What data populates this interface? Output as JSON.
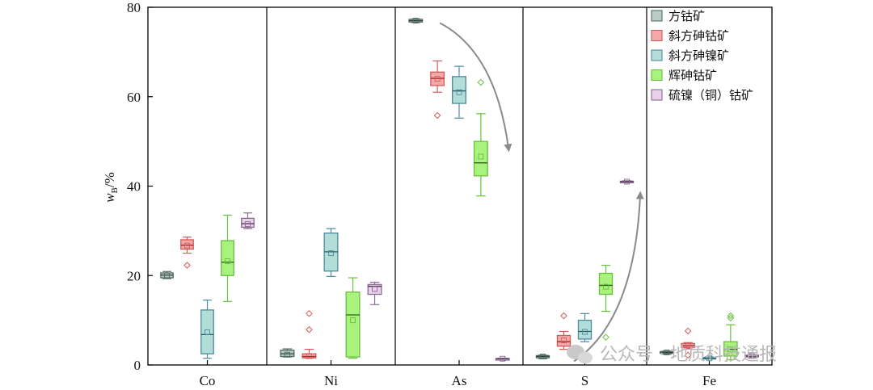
{
  "chart_data": {
    "type": "boxplot",
    "title": "",
    "ylabel_main": "w",
    "ylabel_sub": "B",
    "ylabel_unit": "/%",
    "ylim": [
      0,
      80
    ],
    "yticks": [
      0,
      20,
      40,
      60,
      80
    ],
    "groups": [
      "Co",
      "Ni",
      "As",
      "S",
      "Fe"
    ],
    "series": [
      {
        "name": "方钴矿",
        "face": "#b9cdc6",
        "edge": "#556b65",
        "median_color": "#2f3d39",
        "boxes": [
          {
            "group": "Co",
            "min": 19.3,
            "q1": 19.5,
            "median": 20.1,
            "q3": 20.6,
            "max": 20.9,
            "mean": 20.0,
            "outliers": []
          },
          {
            "group": "Ni",
            "min": 1.8,
            "q1": 1.9,
            "median": 2.5,
            "q3": 3.3,
            "max": 3.6,
            "mean": 2.3,
            "outliers": []
          },
          {
            "group": "As",
            "min": 76.6,
            "q1": 76.7,
            "median": 77.0,
            "q3": 77.3,
            "max": 77.4,
            "mean": 77.0,
            "outliers": []
          },
          {
            "group": "S",
            "min": 1.4,
            "q1": 1.6,
            "median": 1.9,
            "q3": 2.1,
            "max": 2.2,
            "mean": 1.9,
            "outliers": []
          },
          {
            "group": "Fe",
            "min": 2.4,
            "q1": 2.6,
            "median": 2.8,
            "q3": 3.0,
            "max": 3.1,
            "mean": 2.8,
            "outliers": []
          }
        ]
      },
      {
        "name": "斜方砷钴矿",
        "face": "#f2a9a9",
        "edge": "#d65a5a",
        "median_color": "#9c2a2a",
        "boxes": [
          {
            "group": "Co",
            "min": 25.0,
            "q1": 25.9,
            "median": 26.8,
            "q3": 28.0,
            "max": 28.6,
            "mean": 26.7,
            "outliers": [
              22.3
            ]
          },
          {
            "group": "Ni",
            "min": 1.5,
            "q1": 1.6,
            "median": 1.9,
            "q3": 2.5,
            "max": 3.5,
            "mean": 2.0,
            "outliers": [
              7.9,
              11.5
            ]
          },
          {
            "group": "As",
            "min": 61.0,
            "q1": 62.5,
            "median": 64.1,
            "q3": 65.5,
            "max": 68.0,
            "mean": 64.0,
            "outliers": [
              55.8
            ]
          },
          {
            "group": "S",
            "min": 3.5,
            "q1": 4.2,
            "median": 5.2,
            "q3": 6.6,
            "max": 7.5,
            "mean": 5.5,
            "outliers": [
              11.0
            ]
          },
          {
            "group": "Fe",
            "min": 3.6,
            "q1": 3.9,
            "median": 4.3,
            "q3": 4.8,
            "max": 5.0,
            "mean": 4.3,
            "outliers": [
              2.2,
              7.6
            ]
          }
        ]
      },
      {
        "name": "斜方砷镍矿",
        "face": "#b2ddd8",
        "edge": "#4c8c9c",
        "median_color": "#2d5a66",
        "boxes": [
          {
            "group": "Co",
            "min": 1.5,
            "q1": 2.5,
            "median": 6.8,
            "q3": 12.3,
            "max": 14.5,
            "mean": 7.3,
            "outliers": []
          },
          {
            "group": "Ni",
            "min": 19.8,
            "q1": 21.0,
            "median": 25.3,
            "q3": 29.5,
            "max": 30.5,
            "mean": 25.0,
            "outliers": []
          },
          {
            "group": "As",
            "min": 55.2,
            "q1": 58.5,
            "median": 61.3,
            "q3": 64.5,
            "max": 66.8,
            "mean": 61.0,
            "outliers": []
          },
          {
            "group": "S",
            "min": 5.2,
            "q1": 5.8,
            "median": 7.5,
            "q3": 10.0,
            "max": 11.5,
            "mean": 7.4,
            "outliers": []
          },
          {
            "group": "Fe",
            "min": 1.3,
            "q1": 1.4,
            "median": 1.5,
            "q3": 1.7,
            "max": 1.8,
            "mean": 1.5,
            "outliers": []
          }
        ]
      },
      {
        "name": "辉砷钴矿",
        "face": "#a9f27e",
        "edge": "#66c23a",
        "median_color": "#2f5e1a",
        "boxes": [
          {
            "group": "Co",
            "min": 14.2,
            "q1": 20.0,
            "median": 23.0,
            "q3": 27.8,
            "max": 33.5,
            "mean": 23.2,
            "outliers": []
          },
          {
            "group": "Ni",
            "min": 1.5,
            "q1": 1.8,
            "median": 11.2,
            "q3": 16.3,
            "max": 19.5,
            "mean": 10.0,
            "outliers": []
          },
          {
            "group": "As",
            "min": 37.8,
            "q1": 42.3,
            "median": 45.2,
            "q3": 50.0,
            "max": 56.2,
            "mean": 46.6,
            "outliers": [
              63.2
            ]
          },
          {
            "group": "S",
            "min": 12.0,
            "q1": 15.8,
            "median": 17.8,
            "q3": 20.5,
            "max": 22.3,
            "mean": 17.5,
            "outliers": [
              6.2
            ]
          },
          {
            "group": "Fe",
            "min": 1.2,
            "q1": 2.0,
            "median": 3.5,
            "q3": 5.2,
            "max": 9.0,
            "mean": 3.5,
            "outliers": [
              10.5,
              11.0
            ]
          }
        ]
      },
      {
        "name": "硫镍（铜）钴矿",
        "face": "#e7d2ea",
        "edge": "#8a6c93",
        "median_color": "#4d3452",
        "boxes": [
          {
            "group": "Co",
            "min": 30.5,
            "q1": 30.8,
            "median": 31.6,
            "q3": 32.8,
            "max": 34.0,
            "mean": 31.5,
            "outliers": []
          },
          {
            "group": "Ni",
            "min": 13.5,
            "q1": 15.8,
            "median": 17.6,
            "q3": 18.0,
            "max": 18.5,
            "mean": 17.0,
            "outliers": []
          },
          {
            "group": "As",
            "min": 1.3,
            "q1": 1.35,
            "median": 1.4,
            "q3": 1.45,
            "max": 1.5,
            "mean": 1.4,
            "outliers": []
          },
          {
            "group": "S",
            "min": 40.8,
            "q1": 40.9,
            "median": 41.0,
            "q3": 41.1,
            "max": 41.2,
            "mean": 41.0,
            "outliers": []
          },
          {
            "group": "Fe",
            "min": 1.7,
            "q1": 1.8,
            "median": 2.0,
            "q3": 2.2,
            "max": 2.3,
            "mean": 2.0,
            "outliers": []
          }
        ]
      }
    ],
    "annotations": [
      {
        "type": "arrow",
        "description": "As trend downward",
        "from": [
          "As",
          77
        ],
        "to": [
          "As",
          47
        ]
      },
      {
        "type": "arrow",
        "description": "S trend upward",
        "from": [
          "S",
          2
        ],
        "to": [
          "S",
          38
        ]
      }
    ]
  },
  "watermark": {
    "text": "公众号 · 地质科技通报",
    "color": "#b8b8b8"
  },
  "colors": {
    "axis": "#000000",
    "arrow": "#8a8a8a",
    "background": "#ffffff"
  }
}
